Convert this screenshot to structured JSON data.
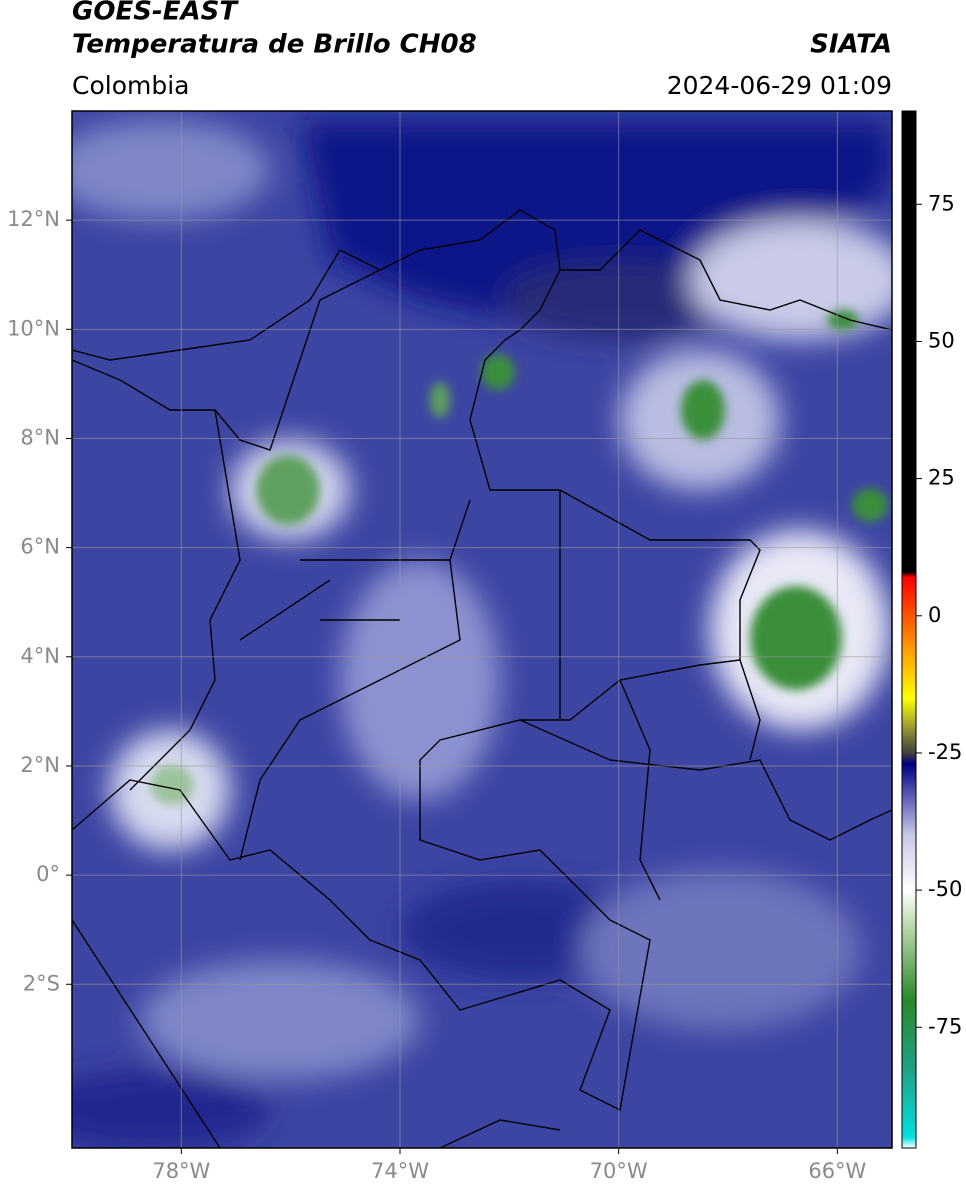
{
  "chart_data": {
    "type": "map",
    "title": "GOES-EAST",
    "subtitle": "Temperatura de Brillo CH08",
    "source": "SIATA",
    "region": "Colombia",
    "timestamp": "2024-06-29 01:09",
    "xlim": [
      -80,
      -65
    ],
    "ylim": [
      -5,
      14
    ],
    "xticks": [
      {
        "value": -78,
        "label": "78°W"
      },
      {
        "value": -74,
        "label": "74°W"
      },
      {
        "value": -70,
        "label": "70°W"
      },
      {
        "value": -66,
        "label": "66°W"
      }
    ],
    "yticks": [
      {
        "value": 12,
        "label": "12°N"
      },
      {
        "value": 10,
        "label": "10°N"
      },
      {
        "value": 8,
        "label": "8°N"
      },
      {
        "value": 6,
        "label": "6°N"
      },
      {
        "value": 4,
        "label": "4°N"
      },
      {
        "value": 2,
        "label": "2°N"
      },
      {
        "value": 0,
        "label": "0°"
      },
      {
        "value": -2,
        "label": "2°S"
      }
    ],
    "grid": true,
    "clim": [
      -97,
      92
    ],
    "cticks": [
      75,
      50,
      25,
      0,
      -25,
      -50,
      -75
    ],
    "colormap": [
      [
        -97,
        "#ffffff"
      ],
      [
        -95,
        "#00e0e0"
      ],
      [
        -82,
        "#20a080"
      ],
      [
        -70,
        "#2a8a2a"
      ],
      [
        -56,
        "#c0dcb0"
      ],
      [
        -50,
        "#ffffff"
      ],
      [
        -40,
        "#c8c8e8"
      ],
      [
        -30,
        "#3030a0"
      ],
      [
        -27,
        "#000080"
      ],
      [
        -25,
        "#404040"
      ],
      [
        -20,
        "#a0a030"
      ],
      [
        -15,
        "#ffff00"
      ],
      [
        -5,
        "#ff9000"
      ],
      [
        7,
        "#ff0000"
      ],
      [
        8,
        "#000000"
      ],
      [
        92,
        "#000000"
      ]
    ]
  }
}
